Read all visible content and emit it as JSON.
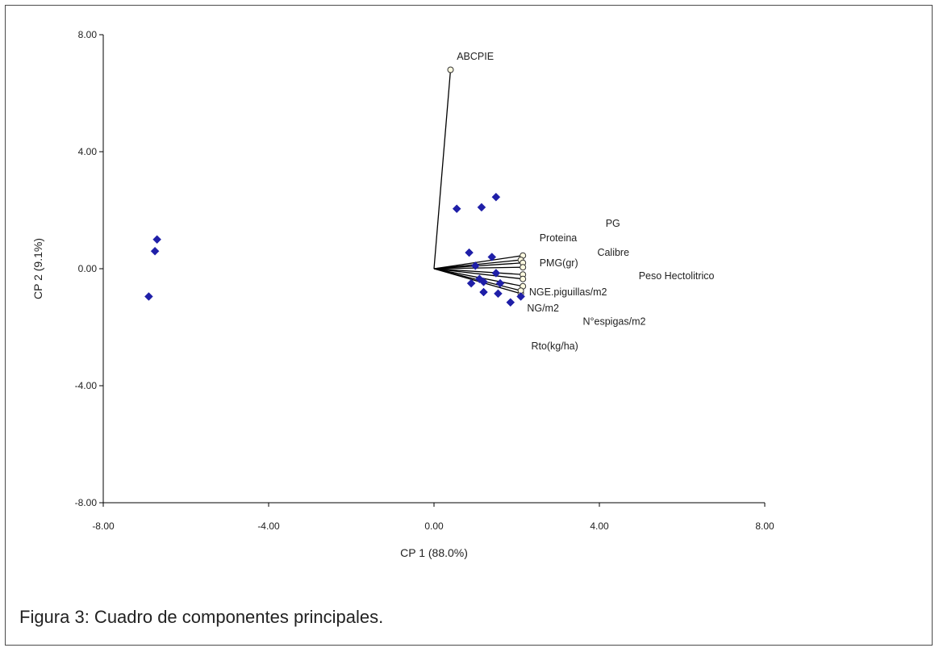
{
  "chart_data": {
    "type": "scatter",
    "subtype": "biplot",
    "xlabel": "CP 1 (88.0%)",
    "ylabel": "CP 2 (9.1%)",
    "xlim": [
      -8,
      8
    ],
    "ylim": [
      -8,
      8
    ],
    "x_ticks": [
      -8,
      -4,
      0,
      4,
      8
    ],
    "y_ticks": [
      -8,
      -4,
      0,
      4,
      8
    ],
    "x_tick_labels": [
      "-8.00",
      "-4.00",
      "0.00",
      "4.00",
      "8.00"
    ],
    "y_tick_labels": [
      "-8.00",
      "-4.00",
      "0.00",
      "4.00",
      "8.00"
    ],
    "grid": false,
    "point_color": "#1f1fa8",
    "vector_color": "#000000",
    "vector_end_fill": "#fffbe0",
    "observations": [
      {
        "x": -6.7,
        "y": 1.0
      },
      {
        "x": -6.75,
        "y": 0.6
      },
      {
        "x": -6.9,
        "y": -0.95
      },
      {
        "x": 0.55,
        "y": 2.05
      },
      {
        "x": 1.15,
        "y": 2.1
      },
      {
        "x": 1.5,
        "y": 2.45
      },
      {
        "x": 0.85,
        "y": 0.55
      },
      {
        "x": 1.4,
        "y": 0.4
      },
      {
        "x": 1.0,
        "y": 0.1
      },
      {
        "x": 1.5,
        "y": -0.15
      },
      {
        "x": 0.9,
        "y": -0.5
      },
      {
        "x": 1.1,
        "y": -0.35
      },
      {
        "x": 1.2,
        "y": -0.45
      },
      {
        "x": 1.6,
        "y": -0.5
      },
      {
        "x": 1.2,
        "y": -0.8
      },
      {
        "x": 1.55,
        "y": -0.85
      },
      {
        "x": 1.85,
        "y": -1.15
      },
      {
        "x": 2.1,
        "y": -0.95
      }
    ],
    "vectors": [
      {
        "name": "ABCPIE",
        "x": 0.4,
        "y": 6.8,
        "label_x": 0.55,
        "label_y": 7.25
      },
      {
        "name": "PG",
        "x": 2.15,
        "y": 0.45,
        "label_x": 4.15,
        "label_y": 1.55
      },
      {
        "name": "Proteina",
        "x": 2.1,
        "y": 0.3,
        "label_x": 2.55,
        "label_y": 1.05
      },
      {
        "name": "Calibre",
        "x": 2.15,
        "y": 0.2,
        "label_x": 3.95,
        "label_y": 0.55
      },
      {
        "name": "PMG(gr)",
        "x": 2.15,
        "y": 0.05,
        "label_x": 2.55,
        "label_y": 0.2
      },
      {
        "name": "Peso Hectolitrico",
        "x": 2.15,
        "y": -0.2,
        "label_x": 4.95,
        "label_y": -0.25
      },
      {
        "name": "NGE.piguillas/m2",
        "x": 2.15,
        "y": -0.35,
        "label_x": 2.3,
        "label_y": -0.8
      },
      {
        "name": "NG/m2",
        "x": 2.1,
        "y": -0.85,
        "label_x": 2.25,
        "label_y": -1.35
      },
      {
        "name": "N°espigas/m2",
        "x": 2.15,
        "y": -0.6,
        "label_x": 3.6,
        "label_y": -1.8
      },
      {
        "name": "Rto(kg/ha)",
        "x": 2.1,
        "y": -0.75,
        "label_x": 2.35,
        "label_y": -2.65
      }
    ]
  },
  "caption": "Figura 3: Cuadro de componentes principales."
}
